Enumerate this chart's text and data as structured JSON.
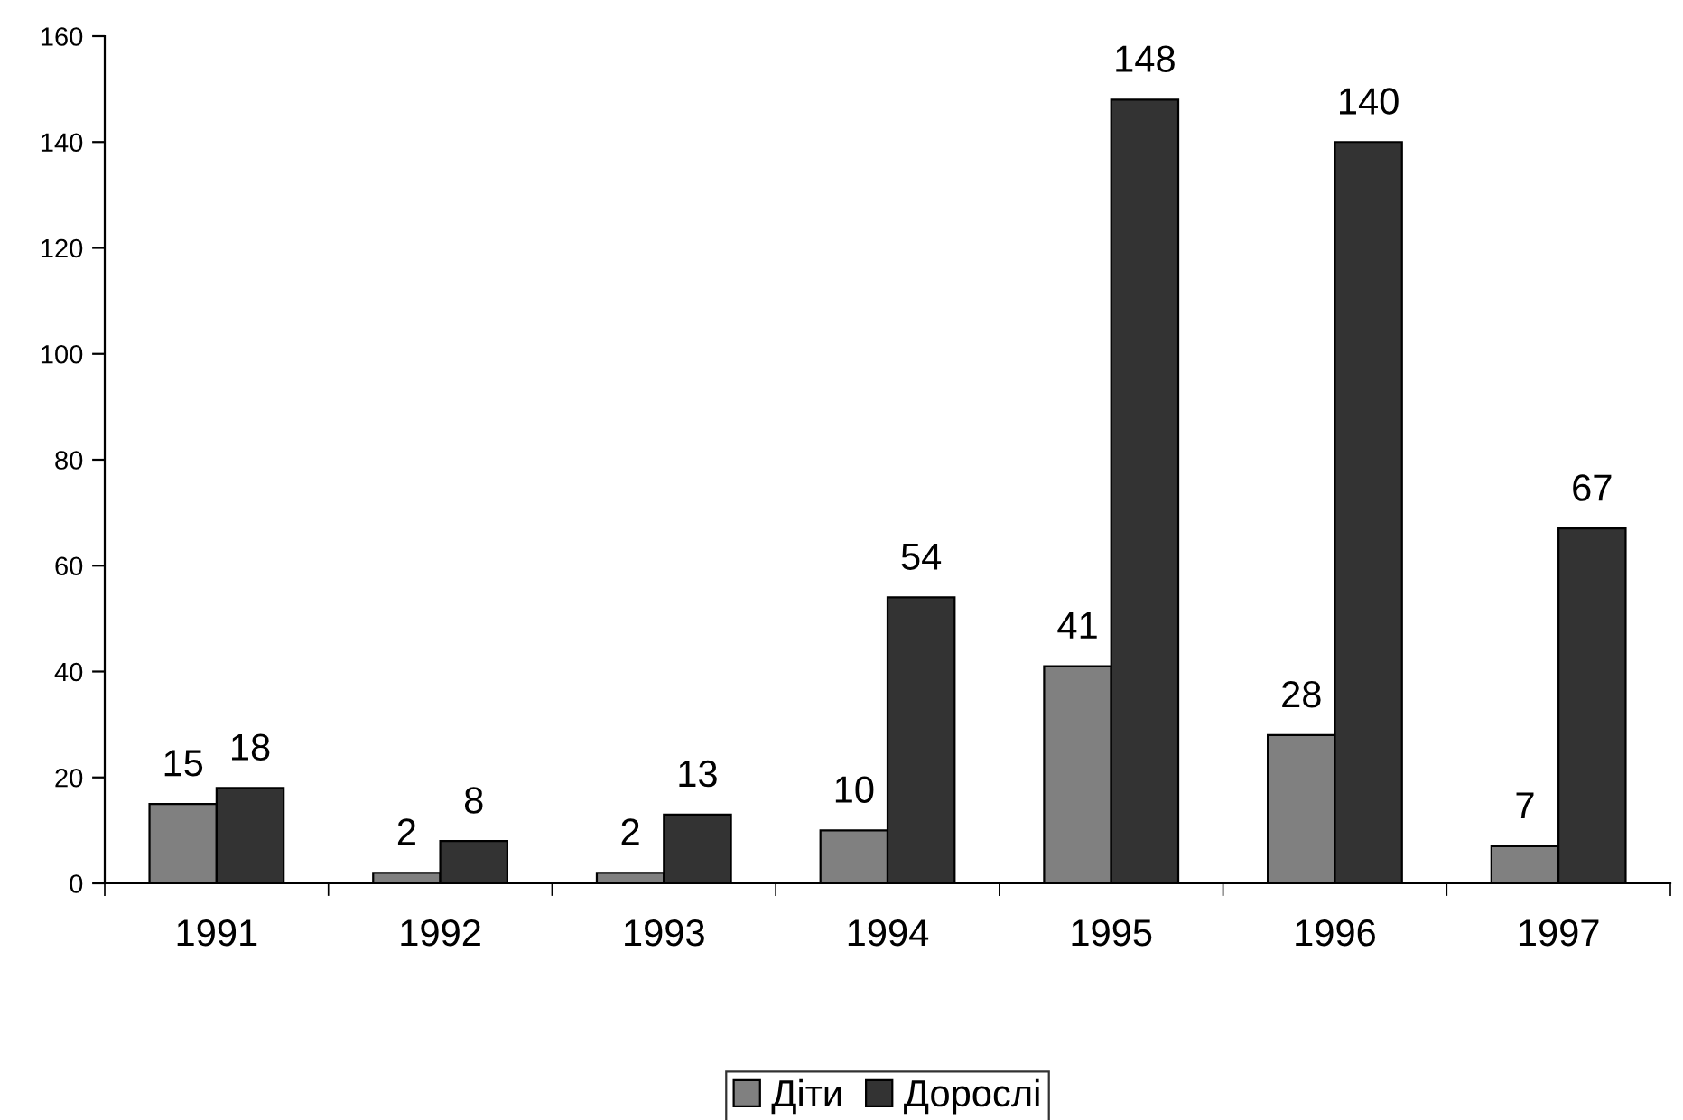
{
  "chart_data": {
    "type": "bar",
    "categories": [
      "1991",
      "1992",
      "1993",
      "1994",
      "1995",
      "1996",
      "1997"
    ],
    "series": [
      {
        "name": "Діти",
        "color": "#808080",
        "values": [
          15,
          2,
          2,
          10,
          41,
          28,
          7
        ]
      },
      {
        "name": "Дорослі",
        "color": "#333333",
        "values": [
          18,
          8,
          13,
          54,
          148,
          140,
          67
        ]
      }
    ],
    "ylim": [
      0,
      160
    ],
    "yticks": [
      0,
      20,
      40,
      60,
      80,
      100,
      120,
      140,
      160
    ],
    "data_labels": true,
    "legend": "bottom",
    "grid": false
  }
}
